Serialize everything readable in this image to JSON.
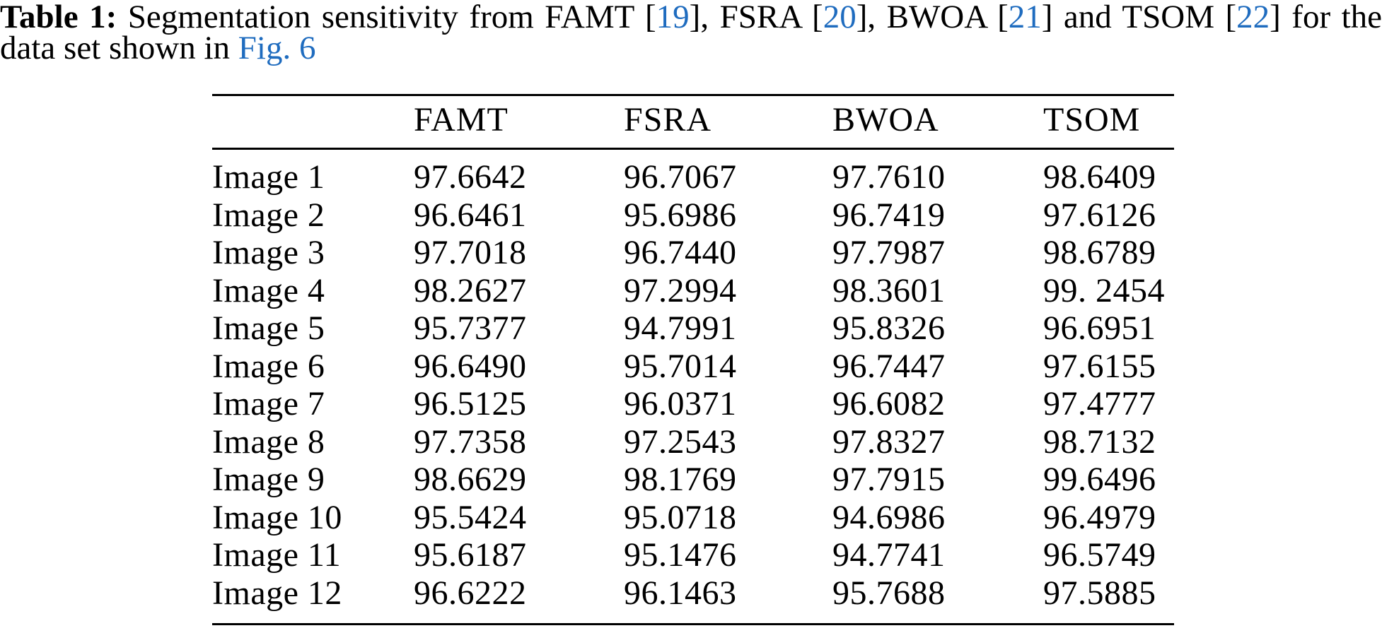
{
  "colors": {
    "link_blue": "#1f6cbf",
    "text": "#000000",
    "background": "#ffffff",
    "rule": "#000000"
  },
  "caption": {
    "line1_segments": [
      {
        "text": "Table 1:",
        "style": "bold",
        "name": "caption-label",
        "interactable": false
      },
      {
        "text": " Segmentation sensitivity from FAMT [",
        "style": "plain",
        "name": "caption-text",
        "interactable": false
      },
      {
        "text": "19",
        "style": "link",
        "name": "citation-19-link",
        "interactable": true
      },
      {
        "text": "], FSRA [",
        "style": "plain",
        "name": "caption-text",
        "interactable": false
      },
      {
        "text": "20",
        "style": "link",
        "name": "citation-20-link",
        "interactable": true
      },
      {
        "text": "], BWOA [",
        "style": "plain",
        "name": "caption-text",
        "interactable": false
      },
      {
        "text": "21",
        "style": "link",
        "name": "citation-21-link",
        "interactable": true
      },
      {
        "text": "] and TSOM [",
        "style": "plain",
        "name": "caption-text",
        "interactable": false
      },
      {
        "text": "22",
        "style": "link",
        "name": "citation-22-link",
        "interactable": true
      },
      {
        "text": "] for the",
        "style": "plain",
        "name": "caption-text",
        "interactable": false
      }
    ],
    "line2_segments": [
      {
        "text": "data set shown in ",
        "style": "plain",
        "name": "caption-text",
        "interactable": false
      },
      {
        "text": "Fig. 6",
        "style": "link",
        "name": "figure-6-link",
        "interactable": true
      }
    ]
  },
  "table": {
    "columns": [
      "FAMT",
      "FSRA",
      "BWOA",
      "TSOM"
    ],
    "rows": [
      {
        "label": "Image 1",
        "values": [
          "97.6642",
          "96.7067",
          "97.7610",
          "98.6409"
        ]
      },
      {
        "label": "Image 2",
        "values": [
          "96.6461",
          "95.6986",
          "96.7419",
          "97.6126"
        ]
      },
      {
        "label": "Image 3",
        "values": [
          "97.7018",
          "96.7440",
          "97.7987",
          "98.6789"
        ]
      },
      {
        "label": "Image 4",
        "values": [
          "98.2627",
          "97.2994",
          "98.3601",
          "99. 2454"
        ]
      },
      {
        "label": "Image 5",
        "values": [
          "95.7377",
          "94.7991",
          "95.8326",
          "96.6951"
        ]
      },
      {
        "label": "Image 6",
        "values": [
          "96.6490",
          "95.7014",
          "96.7447",
          "97.6155"
        ]
      },
      {
        "label": "Image 7",
        "values": [
          "96.5125",
          "96.0371",
          "96.6082",
          "97.4777"
        ]
      },
      {
        "label": "Image 8",
        "values": [
          "97.7358",
          "97.2543",
          "97.8327",
          "98.7132"
        ]
      },
      {
        "label": "Image 9",
        "values": [
          "98.6629",
          "98.1769",
          "97.7915",
          "99.6496"
        ]
      },
      {
        "label": "Image 10",
        "values": [
          "95.5424",
          "95.0718",
          "94.6986",
          "96.4979"
        ]
      },
      {
        "label": "Image 11",
        "values": [
          "95.6187",
          "95.1476",
          "94.7741",
          "96.5749"
        ]
      },
      {
        "label": "Image 12",
        "values": [
          "96.6222",
          "96.1463",
          "95.7688",
          "97.5885"
        ]
      }
    ]
  }
}
